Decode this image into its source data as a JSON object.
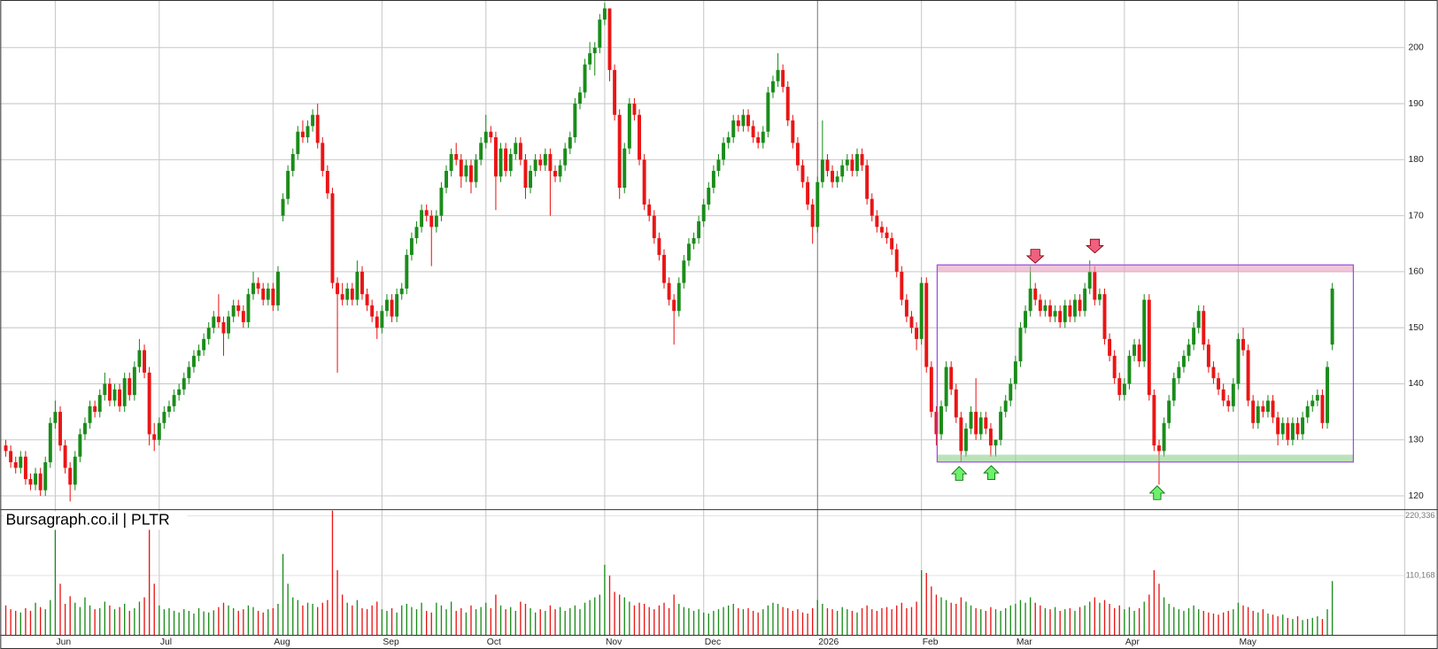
{
  "chart_data": {
    "type": "candlestick",
    "title": "Bursagraph.co.il | PLTR",
    "categories": [
      null,
      null,
      null,
      null,
      null,
      null,
      null,
      null,
      null,
      null,
      "Jun",
      null,
      null,
      null,
      null,
      null,
      null,
      null,
      null,
      null,
      null,
      null,
      null,
      null,
      null,
      null,
      null,
      null,
      null,
      null,
      null,
      "Jul",
      null,
      null,
      null,
      null,
      null,
      null,
      null,
      null,
      null,
      null,
      null,
      null,
      null,
      null,
      null,
      null,
      null,
      null,
      null,
      null,
      null,
      null,
      "Aug",
      null,
      null,
      null,
      null,
      null,
      null,
      null,
      null,
      null,
      null,
      null,
      null,
      null,
      null,
      null,
      null,
      null,
      null,
      null,
      null,
      null,
      "Sep",
      null,
      null,
      null,
      null,
      null,
      null,
      null,
      null,
      null,
      null,
      null,
      null,
      null,
      null,
      null,
      null,
      null,
      null,
      null,
      null,
      "Oct",
      null,
      null,
      null,
      null,
      null,
      null,
      null,
      null,
      null,
      null,
      null,
      null,
      null,
      null,
      null,
      null,
      null,
      null,
      null,
      null,
      null,
      null,
      null,
      "Nov",
      null,
      null,
      null,
      null,
      null,
      null,
      null,
      null,
      null,
      null,
      null,
      null,
      null,
      null,
      null,
      null,
      null,
      null,
      null,
      "Dec",
      null,
      null,
      null,
      null,
      null,
      null,
      null,
      null,
      null,
      null,
      null,
      null,
      null,
      null,
      null,
      null,
      null,
      null,
      null,
      null,
      null,
      null,
      "2026",
      null,
      null,
      null,
      null,
      null,
      null,
      null,
      null,
      null,
      null,
      null,
      null,
      null,
      null,
      null,
      null,
      null,
      null,
      null,
      null,
      "Feb",
      null,
      null,
      null,
      null,
      null,
      null,
      null,
      null,
      null,
      null,
      null,
      null,
      null,
      null,
      null,
      null,
      null,
      null,
      "Mar",
      null,
      null,
      null,
      null,
      null,
      null,
      null,
      null,
      null,
      null,
      null,
      null,
      null,
      null,
      null,
      null,
      null,
      null,
      null,
      null,
      null,
      "Apr",
      null,
      null,
      null,
      null,
      null,
      null,
      null,
      null,
      null,
      null,
      null,
      null,
      null,
      null,
      null,
      null,
      null,
      null,
      null,
      null,
      null,
      null,
      "May",
      null,
      null,
      null,
      null,
      null,
      null,
      null,
      null,
      null,
      null,
      null,
      null,
      null,
      null,
      null,
      null,
      null,
      null,
      null
    ],
    "open": [
      129,
      128,
      126,
      125,
      127,
      123,
      122,
      124,
      121,
      126,
      133,
      135,
      129,
      125,
      122,
      127,
      131,
      133,
      136,
      135,
      138,
      140,
      137,
      139,
      136,
      141,
      138,
      143,
      146,
      142,
      131,
      130,
      133,
      135,
      136,
      138,
      139,
      141,
      143,
      145,
      146,
      148,
      150,
      152,
      151,
      149,
      152,
      154,
      153,
      151,
      156,
      158,
      157,
      155,
      157,
      154,
      170,
      173,
      178,
      181,
      185,
      184,
      186,
      188,
      183,
      178,
      174,
      158,
      156,
      155,
      157,
      155,
      160,
      156,
      154,
      152,
      150,
      153,
      155,
      152,
      156,
      157,
      163,
      166,
      168,
      171,
      170,
      168,
      170,
      175,
      178,
      181,
      180,
      177,
      179,
      176,
      180,
      183,
      185,
      184,
      177,
      182,
      178,
      181,
      183,
      180,
      175,
      178,
      180,
      179,
      181,
      178,
      177,
      179,
      182,
      184,
      190,
      192,
      197,
      199,
      200,
      205,
      207,
      196,
      188,
      175,
      182,
      190,
      188,
      180,
      172,
      170,
      166,
      163,
      158,
      155,
      153,
      158,
      162,
      165,
      166,
      169,
      172,
      175,
      178,
      180,
      183,
      184,
      187,
      186,
      188,
      186,
      184,
      183,
      185,
      192,
      194,
      196,
      193,
      187,
      183,
      179,
      176,
      172,
      168,
      176,
      180,
      178,
      176,
      177,
      179,
      180,
      178,
      181,
      179,
      173,
      170,
      168,
      167,
      166,
      164,
      160,
      155,
      152,
      150,
      148,
      158,
      143,
      135,
      131,
      136,
      143,
      139,
      134,
      128,
      132,
      135,
      131,
      134,
      132,
      129,
      130,
      135,
      137,
      140,
      144,
      150,
      153,
      157,
      155,
      153,
      154,
      152,
      153,
      151,
      154,
      152,
      155,
      153,
      157,
      160,
      155,
      156,
      148,
      145,
      141,
      138,
      140,
      145,
      147,
      144,
      155,
      138,
      129,
      128,
      133,
      137,
      141,
      143,
      145,
      147,
      150,
      153,
      147,
      143,
      141,
      139,
      137,
      136,
      140,
      148,
      146,
      137,
      133,
      136,
      135,
      137,
      134,
      131,
      133,
      130,
      133,
      131,
      134,
      136,
      137,
      138,
      133,
      147
    ],
    "high": [
      130,
      129,
      127,
      128,
      128,
      124,
      125,
      125,
      127,
      134,
      137,
      136,
      130,
      126,
      128,
      132,
      134,
      137,
      137,
      139,
      142,
      141,
      140,
      140,
      142,
      142,
      144,
      148,
      147,
      143,
      133,
      134,
      136,
      137,
      139,
      140,
      142,
      144,
      146,
      147,
      149,
      151,
      153,
      156,
      152,
      153,
      155,
      155,
      154,
      157,
      160,
      159,
      158,
      158,
      158,
      161,
      174,
      179,
      182,
      186,
      187,
      187,
      189,
      190,
      184,
      179,
      175,
      159,
      158,
      158,
      158,
      162,
      161,
      157,
      155,
      153,
      154,
      156,
      156,
      157,
      158,
      164,
      167,
      169,
      172,
      172,
      171,
      171,
      176,
      179,
      182,
      183,
      181,
      180,
      180,
      181,
      184,
      188,
      186,
      185,
      183,
      183,
      182,
      184,
      184,
      181,
      179,
      181,
      181,
      182,
      182,
      179,
      180,
      183,
      185,
      191,
      193,
      198,
      201,
      201,
      206,
      208,
      207,
      197,
      189,
      183,
      191,
      191,
      189,
      181,
      173,
      171,
      167,
      164,
      159,
      156,
      159,
      163,
      166,
      167,
      170,
      173,
      176,
      179,
      181,
      184,
      185,
      188,
      188,
      189,
      189,
      187,
      185,
      186,
      193,
      195,
      199,
      197,
      194,
      188,
      184,
      180,
      177,
      173,
      177,
      187,
      181,
      179,
      178,
      180,
      181,
      181,
      182,
      182,
      180,
      174,
      171,
      169,
      168,
      167,
      165,
      161,
      156,
      153,
      151,
      159,
      159,
      144,
      136,
      137,
      144,
      144,
      140,
      135,
      133,
      136,
      141,
      135,
      135,
      133,
      130,
      136,
      138,
      141,
      145,
      151,
      154,
      161,
      158,
      156,
      155,
      155,
      154,
      154,
      155,
      155,
      156,
      156,
      158,
      162,
      161,
      157,
      157,
      149,
      146,
      142,
      141,
      146,
      148,
      148,
      156,
      156,
      139,
      130,
      134,
      138,
      142,
      144,
      146,
      148,
      151,
      154,
      154,
      148,
      144,
      142,
      140,
      138,
      141,
      149,
      150,
      147,
      138,
      137,
      137,
      138,
      138,
      135,
      134,
      134,
      134,
      134,
      135,
      137,
      138,
      139,
      139,
      144,
      158
    ],
    "low": [
      127,
      125,
      124,
      124,
      122,
      121,
      121,
      120,
      120,
      125,
      132,
      128,
      124,
      119,
      121,
      126,
      130,
      132,
      134,
      134,
      137,
      136,
      136,
      135,
      135,
      137,
      137,
      142,
      141,
      129,
      128,
      129,
      132,
      134,
      135,
      137,
      138,
      140,
      142,
      144,
      145,
      147,
      149,
      150,
      145,
      148,
      151,
      152,
      150,
      150,
      155,
      156,
      154,
      154,
      153,
      153,
      169,
      172,
      177,
      180,
      183,
      183,
      185,
      182,
      177,
      173,
      157,
      142,
      154,
      154,
      154,
      154,
      155,
      153,
      151,
      148,
      149,
      152,
      151,
      151,
      155,
      156,
      162,
      165,
      167,
      169,
      161,
      167,
      169,
      174,
      177,
      179,
      175,
      176,
      174,
      175,
      179,
      182,
      183,
      171,
      176,
      177,
      177,
      180,
      179,
      173,
      174,
      177,
      178,
      178,
      170,
      176,
      176,
      178,
      181,
      183,
      189,
      191,
      196,
      195,
      199,
      204,
      194,
      187,
      173,
      174,
      181,
      187,
      179,
      171,
      169,
      165,
      162,
      157,
      154,
      147,
      152,
      157,
      161,
      164,
      165,
      168,
      171,
      174,
      177,
      179,
      182,
      183,
      185,
      185,
      185,
      183,
      182,
      182,
      184,
      191,
      193,
      192,
      186,
      182,
      178,
      175,
      171,
      165,
      167,
      175,
      177,
      175,
      175,
      176,
      178,
      177,
      177,
      178,
      172,
      169,
      167,
      166,
      165,
      163,
      159,
      154,
      151,
      149,
      146,
      147,
      142,
      134,
      129,
      130,
      135,
      138,
      133,
      126,
      127,
      131,
      130,
      130,
      131,
      127,
      127,
      129,
      134,
      136,
      139,
      143,
      149,
      152,
      154,
      152,
      152,
      151,
      151,
      150,
      150,
      151,
      151,
      152,
      152,
      156,
      154,
      154,
      147,
      144,
      140,
      137,
      137,
      139,
      144,
      143,
      143,
      137,
      128,
      122,
      127,
      132,
      136,
      140,
      142,
      144,
      146,
      149,
      146,
      142,
      140,
      138,
      136,
      135,
      135,
      139,
      145,
      136,
      132,
      132,
      134,
      134,
      133,
      129,
      130,
      129,
      129,
      130,
      130,
      133,
      135,
      136,
      132,
      132,
      146
    ],
    "close": [
      128,
      126,
      125,
      127,
      123,
      122,
      124,
      121,
      126,
      133,
      135,
      129,
      125,
      122,
      127,
      131,
      133,
      136,
      135,
      138,
      140,
      137,
      139,
      136,
      141,
      138,
      143,
      146,
      142,
      131,
      130,
      133,
      135,
      136,
      138,
      139,
      141,
      143,
      145,
      146,
      148,
      150,
      152,
      151,
      149,
      152,
      154,
      153,
      151,
      156,
      158,
      157,
      155,
      157,
      154,
      160,
      173,
      178,
      181,
      185,
      184,
      186,
      188,
      183,
      178,
      174,
      158,
      156,
      155,
      157,
      155,
      160,
      156,
      154,
      152,
      150,
      153,
      155,
      152,
      156,
      157,
      163,
      166,
      168,
      171,
      170,
      168,
      170,
      175,
      178,
      181,
      180,
      177,
      179,
      176,
      180,
      183,
      185,
      184,
      177,
      182,
      178,
      181,
      183,
      180,
      175,
      178,
      180,
      179,
      181,
      178,
      177,
      179,
      182,
      184,
      190,
      192,
      197,
      199,
      200,
      205,
      207,
      196,
      188,
      175,
      182,
      190,
      188,
      180,
      172,
      170,
      166,
      163,
      158,
      155,
      153,
      158,
      162,
      165,
      166,
      169,
      172,
      175,
      178,
      180,
      183,
      184,
      187,
      186,
      188,
      186,
      184,
      183,
      185,
      192,
      194,
      196,
      193,
      187,
      183,
      179,
      176,
      172,
      168,
      176,
      180,
      178,
      176,
      177,
      179,
      180,
      178,
      181,
      179,
      173,
      170,
      168,
      167,
      166,
      164,
      160,
      155,
      152,
      150,
      148,
      158,
      143,
      135,
      131,
      136,
      143,
      139,
      134,
      128,
      132,
      135,
      131,
      134,
      132,
      129,
      130,
      135,
      137,
      140,
      144,
      150,
      153,
      157,
      155,
      153,
      154,
      152,
      153,
      151,
      154,
      152,
      155,
      153,
      157,
      160,
      155,
      156,
      148,
      145,
      141,
      138,
      140,
      145,
      147,
      144,
      155,
      138,
      129,
      128,
      133,
      137,
      141,
      143,
      145,
      147,
      150,
      153,
      147,
      143,
      141,
      139,
      137,
      136,
      140,
      148,
      146,
      137,
      133,
      136,
      135,
      137,
      134,
      131,
      133,
      130,
      133,
      131,
      134,
      136,
      137,
      138,
      133,
      143,
      157
    ],
    "volume": [
      55000,
      48000,
      45000,
      42000,
      50000,
      45000,
      60000,
      52000,
      48000,
      65000,
      210000,
      95000,
      58000,
      72000,
      60000,
      52000,
      70000,
      55000,
      48000,
      50000,
      62000,
      55000,
      48000,
      52000,
      58000,
      45000,
      50000,
      62000,
      70000,
      200000,
      95000,
      55000,
      48000,
      50000,
      45000,
      42000,
      48000,
      45000,
      40000,
      50000,
      44000,
      42000,
      46000,
      52000,
      60000,
      55000,
      50000,
      45000,
      48000,
      55000,
      52000,
      45000,
      42000,
      48000,
      50000,
      58000,
      150000,
      95000,
      70000,
      65000,
      55000,
      60000,
      58000,
      52000,
      60000,
      65000,
      230000,
      120000,
      75000,
      60000,
      55000,
      65000,
      50000,
      48000,
      55000,
      62000,
      48000,
      45000,
      50000,
      42000,
      55000,
      58000,
      52000,
      48000,
      60000,
      45000,
      42000,
      60000,
      55000,
      48000,
      62000,
      45000,
      50000,
      42000,
      55000,
      48000,
      52000,
      60000,
      50000,
      75000,
      55000,
      48000,
      52000,
      45000,
      62000,
      58000,
      50000,
      42000,
      48000,
      45000,
      55000,
      48000,
      52000,
      45000,
      50000,
      55000,
      48000,
      60000,
      65000,
      70000,
      75000,
      130000,
      110000,
      80000,
      75000,
      70000,
      62000,
      55000,
      60000,
      58000,
      52000,
      48000,
      55000,
      60000,
      50000,
      75000,
      58000,
      52000,
      50000,
      45000,
      48000,
      42000,
      40000,
      45000,
      48000,
      52000,
      55000,
      58000,
      50000,
      48000,
      50000,
      45000,
      42000,
      48000,
      55000,
      60000,
      58000,
      52000,
      50000,
      45000,
      48000,
      42000,
      40000,
      50000,
      65000,
      58000,
      50000,
      48000,
      45000,
      52000,
      48000,
      45000,
      42000,
      50000,
      55000,
      48000,
      45000,
      50000,
      52000,
      48000,
      55000,
      60000,
      50000,
      52000,
      62000,
      120000,
      115000,
      90000,
      75000,
      70000,
      65000,
      60000,
      58000,
      70000,
      62000,
      55000,
      50000,
      48000,
      45000,
      52000,
      48000,
      45000,
      50000,
      55000,
      58000,
      65000,
      60000,
      70000,
      60000,
      55000,
      50000,
      48000,
      52000,
      45000,
      48000,
      50000,
      45000,
      52000,
      55000,
      62000,
      70000,
      60000,
      65000,
      58000,
      50000,
      55000,
      48000,
      52000,
      45000,
      50000,
      62000,
      75000,
      120000,
      95000,
      70000,
      58000,
      52000,
      48000,
      45000,
      50000,
      55000,
      48000,
      45000,
      42000,
      40000,
      38000,
      42000,
      45000,
      48000,
      60000,
      55000,
      52000,
      45000,
      42000,
      48000,
      40000,
      38000,
      35000,
      38000,
      32000,
      30000,
      35000,
      28000,
      30000,
      32000,
      35000,
      30000,
      48000,
      100000
    ],
    "up_color": "#1a8c1a",
    "down_color": "#ea1515",
    "ylim": [
      117.7,
      208.5
    ],
    "yticks": [
      120,
      130,
      140,
      150,
      160,
      170,
      180,
      190,
      200
    ],
    "volume_lim": [
      0,
      230000
    ],
    "volume_ticks": [
      {
        "value": 110168,
        "label": "110,168"
      },
      {
        "value": 220336,
        "label": "220,336"
      }
    ],
    "grid": true
  }
}
